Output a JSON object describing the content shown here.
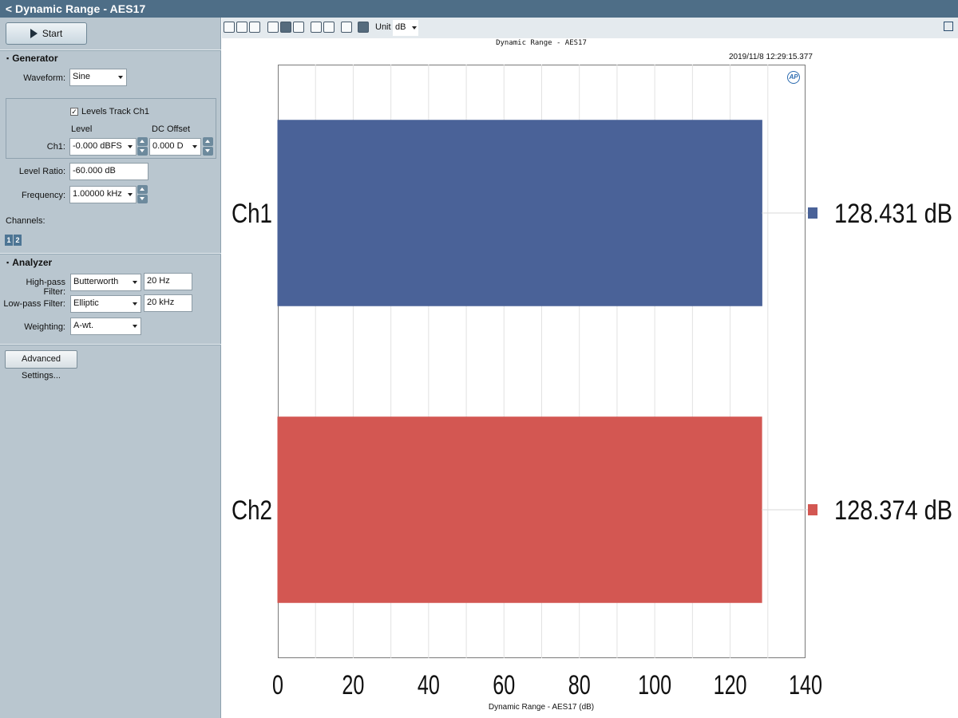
{
  "window": {
    "title": "Dynamic Range - AES17",
    "back_glyph": "<"
  },
  "left_panel": {
    "start_label": "Start",
    "generator": {
      "heading": "Generator",
      "waveform_label": "Waveform:",
      "waveform_value": "Sine",
      "levels_track_label": "Levels Track Ch1",
      "levels_track_checked": true,
      "level_header": "Level",
      "dc_offset_header": "DC Offset",
      "ch1_label": "Ch1:",
      "ch1_level": "-0.000 dBFS",
      "ch1_dc_offset": "0.000 D",
      "level_ratio_label": "Level Ratio:",
      "level_ratio_value": "-60.000 dB",
      "frequency_label": "Frequency:",
      "frequency_value": "1.00000 kHz"
    },
    "channels": {
      "label": "Channels:",
      "buttons": [
        "1",
        "2"
      ]
    },
    "analyzer": {
      "heading": "Analyzer",
      "highpass_label": "High-pass Filter:",
      "highpass_type": "Butterworth",
      "highpass_freq": "20 Hz",
      "lowpass_label": "Low-pass Filter:",
      "lowpass_type": "Elliptic",
      "lowpass_freq": "20 kHz",
      "weighting_label": "Weighting:",
      "weighting_value": "A-wt."
    },
    "advanced_label": "Advanced Settings..."
  },
  "toolbar": {
    "icons": [
      "save-icon",
      "copy-icon",
      "print-icon",
      "zoom-icon",
      "pan-icon",
      "fit-icon",
      "table-icon",
      "graph-style-icon",
      "function-icon",
      "settings-icon"
    ],
    "unit_label": "Unit",
    "unit_value": "dB",
    "popout_icon": "popout-icon"
  },
  "chart": {
    "logo_text": "AP"
  },
  "chart_data": {
    "type": "bar",
    "orientation": "horizontal",
    "title": "Dynamic Range - AES17",
    "timestamp": "2019/11/8 12:29:15.377",
    "categories": [
      "Ch1",
      "Ch2"
    ],
    "values": [
      128.431,
      128.374
    ],
    "value_labels": [
      "128.431 dB",
      "128.374 dB"
    ],
    "colors": [
      "#4a6298",
      "#d35752"
    ],
    "xlabel": "Dynamic Range - AES17 (dB)",
    "xlim": [
      0,
      140
    ],
    "xticks": [
      "0",
      "20",
      "40",
      "60",
      "80",
      "100",
      "120",
      "140"
    ],
    "grid": true
  }
}
